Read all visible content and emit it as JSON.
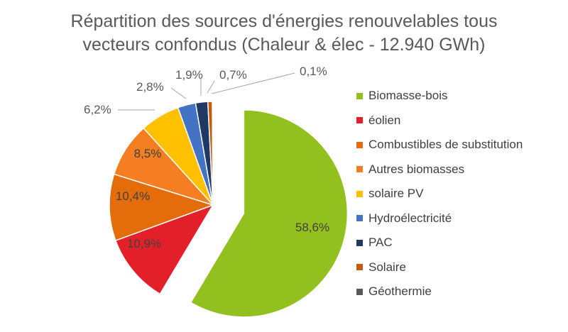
{
  "chart_data": {
    "type": "pie",
    "title_lines": [
      "Répartition des sources d'énergies renouvelables tous",
      "vecteurs confondus (Chaleur & élec - 12.940 GWh)"
    ],
    "legend_position": "right",
    "slices": [
      {
        "name": "Biomasse-bois",
        "value": 58.6,
        "label": "58,6%",
        "color": "#92c01f"
      },
      {
        "name": "éolien",
        "value": 10.9,
        "label": "10,9%",
        "color": "#e3202a"
      },
      {
        "name": "Combustibles de substitution",
        "value": 10.4,
        "label": "10,4%",
        "color": "#e46c0a"
      },
      {
        "name": "Autres biomasses",
        "value": 8.5,
        "label": "8,5%",
        "color": "#f57e22"
      },
      {
        "name": "solaire PV",
        "value": 6.2,
        "label": "6,2%",
        "color": "#ffc000"
      },
      {
        "name": "Hydroélectricité",
        "value": 2.8,
        "label": "2,8%",
        "color": "#4472c4"
      },
      {
        "name": "PAC",
        "value": 1.9,
        "label": "1,9%",
        "color": "#1f3864"
      },
      {
        "name": "Solaire",
        "value": 0.7,
        "label": "0,7%",
        "color": "#c55a11"
      },
      {
        "name": "Géothermie",
        "value": 0.1,
        "label": "0,1%",
        "color": "#595959"
      }
    ]
  }
}
